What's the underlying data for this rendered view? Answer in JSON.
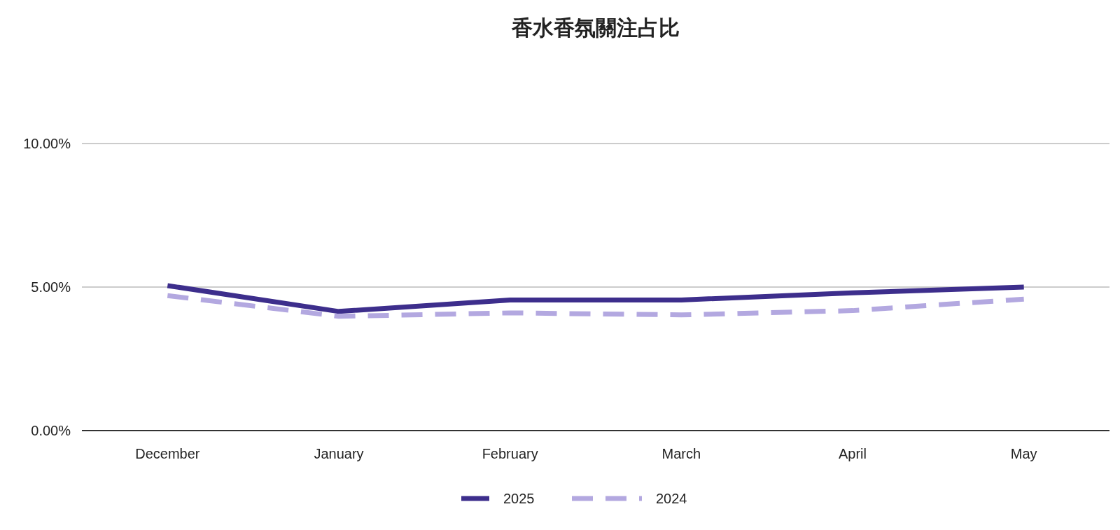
{
  "chart_data": {
    "type": "line",
    "title": "香水香氛關注占比",
    "categories": [
      "December",
      "January",
      "February",
      "March",
      "April",
      "May"
    ],
    "series": [
      {
        "name": "2025",
        "color": "#3d2e8c",
        "line_style": "solid",
        "values": [
          5.05,
          4.15,
          4.55,
          4.55,
          4.8,
          5.0
        ]
      },
      {
        "name": "2024",
        "color": "#b3a8e0",
        "line_style": "dashed",
        "values": [
          4.7,
          3.98,
          4.1,
          4.03,
          4.18,
          4.58
        ]
      }
    ],
    "ylim": [
      0,
      10
    ],
    "yticks": [
      {
        "value": 0,
        "label": "0.00%"
      },
      {
        "value": 5,
        "label": "5.00%"
      },
      {
        "value": 10,
        "label": "10.00%"
      }
    ],
    "grid": "y",
    "legend": "bottom"
  }
}
